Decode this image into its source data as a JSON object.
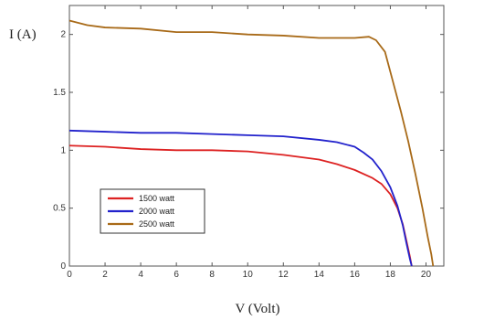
{
  "chart_data": {
    "type": "line",
    "xlabel": "V (Volt)",
    "ylabel": "I (A)",
    "xlim": [
      0,
      21
    ],
    "ylim": [
      0,
      2.25
    ],
    "x_ticks": [
      0,
      2,
      4,
      6,
      8,
      10,
      12,
      14,
      16,
      18,
      20
    ],
    "x_tick_labels": [
      "0",
      "2",
      "4",
      "6",
      "8",
      "10",
      "12",
      "14",
      "16",
      "18",
      "20"
    ],
    "y_ticks": [
      0,
      0.5,
      1,
      1.5,
      2
    ],
    "y_tick_labels": [
      "0",
      "0.5",
      "1",
      "1.5",
      "2"
    ],
    "grid": false,
    "legend_position": "lower-left",
    "series": [
      {
        "name": "1500 watt",
        "color": "#dd2222",
        "points": [
          [
            0,
            1.04
          ],
          [
            2,
            1.03
          ],
          [
            4,
            1.01
          ],
          [
            6,
            1.0
          ],
          [
            8,
            1.0
          ],
          [
            10,
            0.99
          ],
          [
            12,
            0.96
          ],
          [
            14,
            0.92
          ],
          [
            15,
            0.88
          ],
          [
            16,
            0.83
          ],
          [
            17,
            0.76
          ],
          [
            17.5,
            0.71
          ],
          [
            18,
            0.62
          ],
          [
            18.4,
            0.5
          ],
          [
            18.7,
            0.36
          ],
          [
            18.9,
            0.22
          ],
          [
            19.1,
            0.08
          ],
          [
            19.2,
            0
          ]
        ]
      },
      {
        "name": "2000 watt",
        "color": "#2222cc",
        "points": [
          [
            0,
            1.17
          ],
          [
            2,
            1.16
          ],
          [
            4,
            1.15
          ],
          [
            6,
            1.15
          ],
          [
            8,
            1.14
          ],
          [
            10,
            1.13
          ],
          [
            12,
            1.12
          ],
          [
            14,
            1.09
          ],
          [
            15,
            1.07
          ],
          [
            16,
            1.03
          ],
          [
            16.5,
            0.98
          ],
          [
            17,
            0.92
          ],
          [
            17.5,
            0.82
          ],
          [
            18,
            0.68
          ],
          [
            18.4,
            0.52
          ],
          [
            18.7,
            0.35
          ],
          [
            18.9,
            0.2
          ],
          [
            19.1,
            0.06
          ],
          [
            19.2,
            0
          ]
        ]
      },
      {
        "name": "2500 watt",
        "color": "#a86a18",
        "points": [
          [
            0,
            2.12
          ],
          [
            1,
            2.08
          ],
          [
            2,
            2.06
          ],
          [
            4,
            2.05
          ],
          [
            6,
            2.02
          ],
          [
            8,
            2.02
          ],
          [
            10,
            2.0
          ],
          [
            12,
            1.99
          ],
          [
            14,
            1.97
          ],
          [
            15,
            1.97
          ],
          [
            16,
            1.97
          ],
          [
            16.8,
            1.98
          ],
          [
            17.2,
            1.95
          ],
          [
            17.7,
            1.85
          ],
          [
            18.1,
            1.62
          ],
          [
            18.6,
            1.33
          ],
          [
            19.0,
            1.08
          ],
          [
            19.4,
            0.8
          ],
          [
            19.8,
            0.5
          ],
          [
            20.1,
            0.25
          ],
          [
            20.3,
            0.1
          ],
          [
            20.4,
            0
          ]
        ]
      }
    ]
  }
}
